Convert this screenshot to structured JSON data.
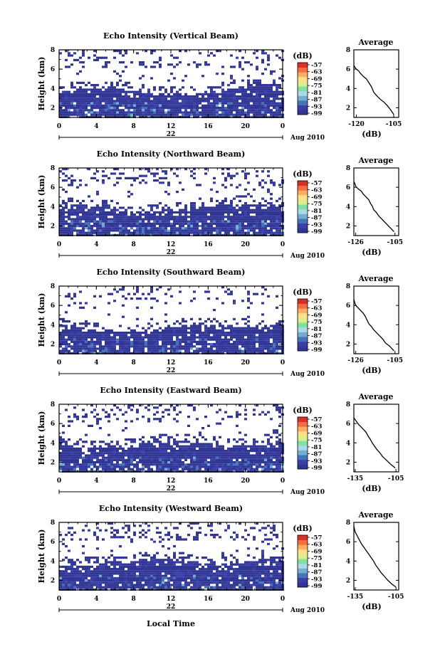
{
  "figure": {
    "xlabel": "Local Time",
    "date_label": "Aug 2010",
    "day_label": "22",
    "colorbar_unit": "(dB)",
    "colorbar_ticks": [
      "-57",
      "-63",
      "-69",
      "-75",
      "-81",
      "-87",
      "-93",
      "-99"
    ],
    "avg_title": "Average",
    "avg_xlabel": "(dB)"
  },
  "chart_data": [
    {
      "type": "heatmap",
      "title": "Echo Intensity (Vertical Beam)",
      "ylabel": "Height (km)",
      "xticks": [
        "0",
        "4",
        "8",
        "12",
        "16",
        "20",
        "0"
      ],
      "yticks": [
        "2",
        "4",
        "6",
        "8"
      ],
      "xlim": [
        0,
        24
      ],
      "ylim": [
        1,
        8
      ],
      "clim": [
        -99,
        -57
      ],
      "layer_top_km": 3.8,
      "avg": {
        "type": "line",
        "xticks": [
          "-120",
          "-105"
        ],
        "yticks": [
          "2",
          "4",
          "6",
          "8"
        ],
        "xlim": [
          -121,
          -103
        ],
        "ylim": [
          1,
          8
        ],
        "x": [
          -121,
          -120.6,
          -120,
          -119,
          -118.5,
          -117,
          -116,
          -115,
          -114,
          -113.5,
          -113,
          -112,
          -110.5,
          -109,
          -107.5,
          -106,
          -105
        ],
        "y": [
          6.4,
          6.2,
          6.0,
          5.8,
          5.6,
          5.2,
          5.0,
          4.6,
          4.2,
          3.9,
          3.6,
          3.3,
          2.9,
          2.6,
          2.2,
          1.7,
          1.3
        ]
      }
    },
    {
      "type": "heatmap",
      "title": "Echo Intensity (Northward Beam)",
      "ylabel": "Height (km)",
      "xticks": [
        "0",
        "4",
        "8",
        "12",
        "16",
        "20",
        "0"
      ],
      "yticks": [
        "2",
        "4",
        "6",
        "8"
      ],
      "xlim": [
        0,
        24
      ],
      "ylim": [
        1,
        8
      ],
      "clim": [
        -99,
        -57
      ],
      "layer_top_km": 3.9,
      "avg": {
        "type": "line",
        "xticks": [
          "-126",
          "-105"
        ],
        "yticks": [
          "2",
          "4",
          "6",
          "8"
        ],
        "xlim": [
          -127,
          -103
        ],
        "ylim": [
          1,
          8
        ],
        "x": [
          -127,
          -126.5,
          -126,
          -124.5,
          -123,
          -122,
          -120.5,
          -119,
          -118,
          -117,
          -116.5,
          -115,
          -113.5,
          -112,
          -110,
          -108,
          -105.5
        ],
        "y": [
          6.6,
          6.4,
          6.1,
          5.8,
          5.6,
          5.3,
          5.0,
          4.7,
          4.3,
          4.0,
          3.7,
          3.4,
          3.0,
          2.7,
          2.3,
          1.9,
          1.4
        ]
      }
    },
    {
      "type": "heatmap",
      "title": "Echo Intensity (Southward Beam)",
      "ylabel": "Height (km)",
      "xticks": [
        "0",
        "4",
        "8",
        "12",
        "16",
        "20",
        "0"
      ],
      "yticks": [
        "2",
        "4",
        "6",
        "8"
      ],
      "xlim": [
        0,
        24
      ],
      "ylim": [
        1,
        8
      ],
      "clim": [
        -99,
        -57
      ],
      "layer_top_km": 3.7,
      "avg": {
        "type": "line",
        "xticks": [
          "-126",
          "-105"
        ],
        "yticks": [
          "2",
          "4",
          "6",
          "8"
        ],
        "xlim": [
          -127,
          -103
        ],
        "ylim": [
          1,
          8
        ],
        "x": [
          -127,
          -126.5,
          -126,
          -124.5,
          -123.5,
          -122,
          -121,
          -120,
          -119,
          -117.5,
          -116.5,
          -115,
          -113.5,
          -111.5,
          -110,
          -108,
          -105.5
        ],
        "y": [
          6.6,
          6.3,
          6.0,
          5.7,
          5.5,
          5.2,
          4.9,
          4.5,
          4.1,
          3.8,
          3.5,
          3.2,
          2.9,
          2.5,
          2.1,
          1.8,
          1.3
        ]
      }
    },
    {
      "type": "heatmap",
      "title": "Echo Intensity (Eastward Beam)",
      "ylabel": "Height (km)",
      "xticks": [
        "0",
        "4",
        "8",
        "12",
        "16",
        "20",
        "0"
      ],
      "yticks": [
        "2",
        "4",
        "6",
        "8"
      ],
      "xlim": [
        0,
        24
      ],
      "ylim": [
        1,
        8
      ],
      "clim": [
        -99,
        -57
      ],
      "layer_top_km": 3.9,
      "avg": {
        "type": "line",
        "xticks": [
          "-135",
          "-105"
        ],
        "yticks": [
          "2",
          "4",
          "6",
          "8"
        ],
        "xlim": [
          -136,
          -103
        ],
        "ylim": [
          1,
          8
        ],
        "x": [
          -136,
          -135,
          -134,
          -132.5,
          -131,
          -129,
          -127,
          -125.5,
          -124,
          -122.5,
          -121,
          -119,
          -117,
          -115,
          -112,
          -109,
          -105.5
        ],
        "y": [
          6.6,
          6.4,
          6.2,
          5.9,
          5.7,
          5.4,
          5.1,
          4.7,
          4.4,
          4.0,
          3.7,
          3.3,
          3.0,
          2.6,
          2.2,
          1.8,
          1.4
        ]
      }
    },
    {
      "type": "heatmap",
      "title": "Echo Intensity (Westward Beam)",
      "ylabel": "Height (km)",
      "xticks": [
        "0",
        "4",
        "8",
        "12",
        "16",
        "20",
        "0"
      ],
      "yticks": [
        "2",
        "4",
        "6",
        "8"
      ],
      "xlim": [
        0,
        24
      ],
      "ylim": [
        1,
        8
      ],
      "clim": [
        -99,
        -57
      ],
      "layer_top_km": 4.0,
      "avg": {
        "type": "line",
        "xticks": [
          "-135",
          "-105"
        ],
        "yticks": [
          "2",
          "4",
          "6",
          "8"
        ],
        "xlim": [
          -136,
          -103
        ],
        "ylim": [
          1,
          8
        ],
        "x": [
          -136,
          -135,
          -133.5,
          -132,
          -130.5,
          -128.5,
          -126.5,
          -125,
          -123,
          -121.5,
          -120,
          -118,
          -116,
          -113.5,
          -111,
          -108,
          -105
        ],
        "y": [
          7.6,
          7.0,
          6.6,
          6.2,
          5.8,
          5.4,
          5.0,
          4.7,
          4.3,
          4.0,
          3.6,
          3.2,
          2.8,
          2.4,
          2.0,
          1.6,
          1.3
        ]
      }
    }
  ]
}
